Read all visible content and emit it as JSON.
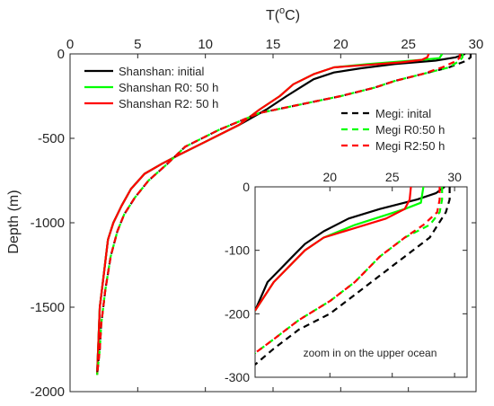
{
  "chart_data": {
    "type": "line",
    "main": {
      "xlabel": "T(oC)",
      "xlabel_parts": {
        "base": "T(",
        "sup": "o",
        "tail": "C)"
      },
      "ylabel": "Depth (m)",
      "xlim": [
        0,
        30
      ],
      "ylim": [
        -2000,
        0
      ],
      "xticks": [
        0,
        5,
        10,
        15,
        20,
        25,
        30
      ],
      "yticks": [
        0,
        -500,
        -1000,
        -1500,
        -2000
      ],
      "series": [
        {
          "name": "Shanshan: initial",
          "color": "#000000",
          "dash": "solid",
          "x": [
            29.2,
            28.5,
            27.0,
            24.0,
            21.5,
            19.5,
            18.0,
            17.0,
            16.0,
            14.5,
            12.5,
            10.0,
            8.0,
            6.8,
            5.5,
            4.5,
            3.8,
            3.2,
            2.8,
            2.5,
            2.2,
            2.1,
            2.0
          ],
          "y": [
            0,
            -20,
            -40,
            -60,
            -85,
            -110,
            -150,
            -200,
            -250,
            -330,
            -420,
            -520,
            -600,
            -650,
            -710,
            -800,
            -900,
            -1000,
            -1100,
            -1300,
            -1500,
            -1700,
            -1900
          ]
        },
        {
          "name": "Shanshan R0: 50 h",
          "color": "#00ff00",
          "dash": "solid",
          "x": [
            27.5,
            27.3,
            26.0,
            22.0,
            19.5,
            18.0,
            16.5,
            15.5,
            14.0,
            12.5,
            10.0,
            8.0,
            6.8,
            5.5,
            4.5,
            3.8,
            3.2,
            2.8,
            2.5,
            2.2,
            2.1,
            2.0
          ],
          "y": [
            0,
            -25,
            -35,
            -60,
            -80,
            -120,
            -180,
            -250,
            -330,
            -420,
            -520,
            -600,
            -650,
            -710,
            -800,
            -900,
            -1000,
            -1100,
            -1300,
            -1500,
            -1700,
            -1900
          ]
        },
        {
          "name": "Shanshan R2: 50 h",
          "color": "#ff0000",
          "dash": "solid",
          "x": [
            26.5,
            26.4,
            26.0,
            24.5,
            19.5,
            18.0,
            16.5,
            15.5,
            14.0,
            12.5,
            10.0,
            8.0,
            6.8,
            5.5,
            4.5,
            3.8,
            3.2,
            2.8,
            2.5,
            2.2,
            2.1,
            2.0
          ],
          "y": [
            0,
            -20,
            -35,
            -50,
            -80,
            -120,
            -180,
            -250,
            -330,
            -420,
            -520,
            -600,
            -650,
            -710,
            -800,
            -900,
            -1000,
            -1100,
            -1300,
            -1500,
            -1700,
            -1900
          ]
        },
        {
          "name": "Megi: inital",
          "color": "#000000",
          "dash": "dashed",
          "x": [
            29.6,
            29.6,
            29.3,
            28.0,
            26.0,
            24.0,
            22.5,
            20.0,
            17.0,
            14.0,
            11.0,
            8.5,
            7.2,
            5.8,
            4.8,
            4.0,
            3.5,
            3.0,
            2.6,
            2.3,
            2.2,
            2.0
          ],
          "y": [
            0,
            -20,
            -40,
            -80,
            -120,
            -160,
            -200,
            -250,
            -300,
            -350,
            -450,
            -550,
            -650,
            -750,
            -850,
            -950,
            -1050,
            -1200,
            -1400,
            -1600,
            -1750,
            -1900
          ]
        },
        {
          "name": "Megi R0:50 h",
          "color": "#00ff00",
          "dash": "dashed",
          "x": [
            29.0,
            29.0,
            28.8,
            28.0,
            26.0,
            24.0,
            22.5,
            20.0,
            17.0,
            14.0,
            11.0,
            8.5,
            7.2,
            5.8,
            4.8,
            4.0,
            3.5,
            3.0,
            2.6,
            2.3,
            2.2,
            2.0
          ],
          "y": [
            0,
            -20,
            -40,
            -80,
            -120,
            -160,
            -200,
            -250,
            -300,
            -350,
            -450,
            -550,
            -650,
            -750,
            -850,
            -950,
            -1050,
            -1200,
            -1400,
            -1600,
            -1750,
            -1900
          ]
        },
        {
          "name": "Megi R2:50 h",
          "color": "#ff0000",
          "dash": "dashed",
          "x": [
            28.8,
            28.8,
            28.6,
            27.5,
            26.0,
            24.0,
            22.5,
            20.0,
            17.0,
            14.0,
            11.0,
            8.5,
            7.2,
            5.8,
            4.8,
            4.0,
            3.5,
            3.0,
            2.6,
            2.3,
            2.2,
            2.0
          ],
          "y": [
            0,
            -20,
            -40,
            -80,
            -120,
            -160,
            -200,
            -250,
            -300,
            -350,
            -450,
            -550,
            -650,
            -750,
            -850,
            -950,
            -1050,
            -1200,
            -1400,
            -1600,
            -1750,
            -1900
          ]
        }
      ]
    },
    "inset": {
      "annotation": "zoom in on the upper ocean",
      "xlim": [
        14,
        31
      ],
      "ylim": [
        -300,
        0
      ],
      "xticks": [
        20,
        25,
        30
      ],
      "yticks": [
        0,
        -100,
        -200,
        -300
      ],
      "ytick_labels": [
        "0",
        "-100",
        "-200",
        "-300"
      ],
      "series": [
        {
          "name": "Shanshan: initial",
          "color": "#000000",
          "dash": "solid",
          "x": [
            29.2,
            28.5,
            27.0,
            24.0,
            21.5,
            19.5,
            18.0,
            17.0,
            16.0,
            15.0,
            14.0
          ],
          "y": [
            0,
            -10,
            -20,
            -35,
            -50,
            -70,
            -90,
            -110,
            -130,
            -150,
            -195
          ]
        },
        {
          "name": "Shanshan R0: 50 h",
          "color": "#00ff00",
          "dash": "solid",
          "x": [
            27.5,
            27.3,
            26.0,
            22.0,
            19.5,
            18.0,
            16.5,
            15.5,
            14.0
          ],
          "y": [
            0,
            -25,
            -35,
            -60,
            -80,
            -100,
            -130,
            -150,
            -195
          ]
        },
        {
          "name": "Shanshan R2: 50 h",
          "color": "#ff0000",
          "dash": "solid",
          "x": [
            26.5,
            26.4,
            26.0,
            24.5,
            19.5,
            18.0,
            16.5,
            15.5,
            14.0
          ],
          "y": [
            0,
            -20,
            -35,
            -50,
            -80,
            -100,
            -130,
            -150,
            -195
          ]
        },
        {
          "name": "Megi: inital",
          "color": "#000000",
          "dash": "dashed",
          "x": [
            29.6,
            29.6,
            29.3,
            28.0,
            26.0,
            24.0,
            22.0,
            20.0,
            17.5,
            15.5,
            14.0
          ],
          "y": [
            0,
            -20,
            -40,
            -80,
            -110,
            -140,
            -170,
            -200,
            -225,
            -255,
            -280
          ]
        },
        {
          "name": "Megi R0:50 h",
          "color": "#00ff00",
          "dash": "dashed",
          "x": [
            29.0,
            29.0,
            28.8,
            28.0,
            26.0,
            24.0,
            22.0,
            20.0,
            17.5,
            15.5,
            14.0
          ],
          "y": [
            0,
            -20,
            -40,
            -60,
            -80,
            -110,
            -150,
            -180,
            -210,
            -240,
            -262
          ]
        },
        {
          "name": "Megi R2:50 h",
          "color": "#ff0000",
          "dash": "dashed",
          "x": [
            28.8,
            28.8,
            28.6,
            27.5,
            26.0,
            24.0,
            22.0,
            20.0,
            17.5,
            15.5,
            14.0
          ],
          "y": [
            0,
            -20,
            -40,
            -60,
            -80,
            -110,
            -150,
            -180,
            -210,
            -240,
            -262
          ]
        }
      ]
    },
    "legends": {
      "shanshan": [
        "Shanshan: initial",
        "Shanshan R0: 50 h",
        "Shanshan R2: 50 h"
      ],
      "megi": [
        "Megi: inital",
        "Megi R0:50 h",
        "Megi R2:50 h"
      ]
    }
  }
}
